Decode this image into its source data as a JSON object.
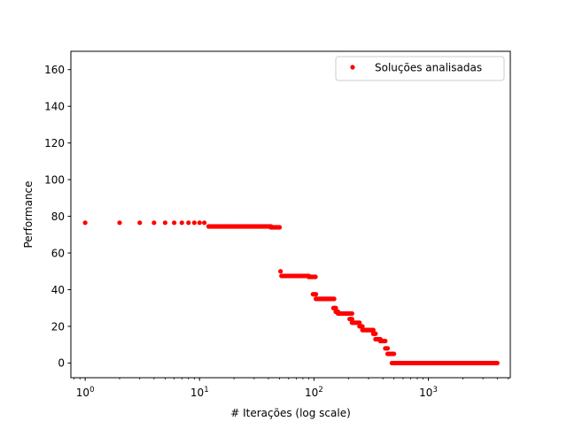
{
  "chart_data": {
    "type": "scatter",
    "title": "",
    "xlabel": "# Iterações (log scale)",
    "ylabel": "Performance",
    "xscale": "log",
    "xlim": [
      0.75,
      5200
    ],
    "ylim": [
      -8,
      170
    ],
    "grid": false,
    "legend_position": "top-right",
    "x_ticks": [
      {
        "value": 1,
        "base": "10",
        "exp": "0"
      },
      {
        "value": 10,
        "base": "10",
        "exp": "1"
      },
      {
        "value": 100,
        "base": "10",
        "exp": "2"
      },
      {
        "value": 1000,
        "base": "10",
        "exp": "3"
      }
    ],
    "y_ticks": [
      {
        "value": 0,
        "label": "0"
      },
      {
        "value": 20,
        "label": "20"
      },
      {
        "value": 40,
        "label": "40"
      },
      {
        "value": 60,
        "label": "60"
      },
      {
        "value": 80,
        "label": "80"
      },
      {
        "value": 100,
        "label": "100"
      },
      {
        "value": 120,
        "label": "120"
      },
      {
        "value": 140,
        "label": "140"
      },
      {
        "value": 160,
        "label": "160"
      }
    ],
    "series": [
      {
        "name": "Soluções analisadas",
        "color": "#ff0000",
        "marker": "circle",
        "segments": [
          {
            "x_from": 1,
            "x_to": 11,
            "y": 76.5,
            "discrete": true
          },
          {
            "x_from": 12,
            "x_to": 42,
            "y": 74.5
          },
          {
            "x_from": 42,
            "x_to": 50,
            "y": 74
          },
          {
            "x_from": 51,
            "x_to": 51,
            "y": 50
          },
          {
            "x_from": 52,
            "x_to": 90,
            "y": 47.5
          },
          {
            "x_from": 90,
            "x_to": 103,
            "y": 47
          },
          {
            "x_from": 98,
            "x_to": 104,
            "y": 37.5
          },
          {
            "x_from": 104,
            "x_to": 150,
            "y": 35
          },
          {
            "x_from": 148,
            "x_to": 155,
            "y": 30
          },
          {
            "x_from": 155,
            "x_to": 162,
            "y": 28
          },
          {
            "x_from": 162,
            "x_to": 215,
            "y": 27
          },
          {
            "x_from": 205,
            "x_to": 215,
            "y": 24
          },
          {
            "x_from": 215,
            "x_to": 250,
            "y": 22
          },
          {
            "x_from": 250,
            "x_to": 265,
            "y": 20
          },
          {
            "x_from": 265,
            "x_to": 330,
            "y": 18
          },
          {
            "x_from": 330,
            "x_to": 345,
            "y": 16
          },
          {
            "x_from": 345,
            "x_to": 380,
            "y": 13
          },
          {
            "x_from": 380,
            "x_to": 420,
            "y": 12
          },
          {
            "x_from": 420,
            "x_to": 440,
            "y": 8
          },
          {
            "x_from": 440,
            "x_to": 500,
            "y": 5
          },
          {
            "x_from": 480,
            "x_to": 4000,
            "y": 0
          }
        ]
      }
    ]
  }
}
